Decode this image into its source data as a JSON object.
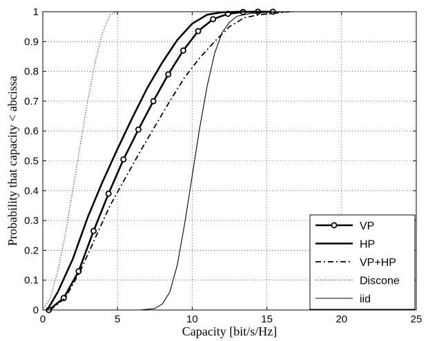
{
  "chart_data": {
    "type": "line",
    "title": "",
    "xlabel": "Capacity [bit/s/Hz]",
    "ylabel": "Probability that capacity < abcissa",
    "xlim": [
      0,
      25
    ],
    "ylim": [
      0,
      1
    ],
    "xticks": [
      0,
      5,
      10,
      15,
      20,
      25
    ],
    "yticks": [
      0,
      0.1,
      0.2,
      0.3,
      0.4,
      0.5,
      0.6,
      0.7,
      0.8,
      0.9,
      1
    ],
    "xtick_labels": [
      "0",
      "5",
      "10",
      "15",
      "20",
      "25"
    ],
    "ytick_labels": [
      "0",
      "0.1",
      "0.2",
      "0.3",
      "0.4",
      "0.5",
      "0.6",
      "0.7",
      "0.8",
      "0.9",
      "1"
    ],
    "grid": true,
    "legend_position": "bottom-right",
    "series": [
      {
        "name": "VP",
        "style": "solid-thick-circle",
        "x": [
          0.4,
          1.4,
          2.4,
          3.4,
          4.4,
          5.4,
          6.4,
          7.4,
          8.4,
          9.4,
          10.4,
          11.4,
          12.4,
          13.4,
          14.4,
          15.4
        ],
        "y": [
          0.0,
          0.04,
          0.13,
          0.265,
          0.39,
          0.505,
          0.605,
          0.7,
          0.79,
          0.87,
          0.935,
          0.975,
          0.993,
          0.999,
          1.0,
          1.0
        ]
      },
      {
        "name": "HP",
        "style": "solid-thick",
        "x": [
          0.3,
          1.0,
          2.0,
          3.0,
          4.0,
          5.0,
          6.0,
          7.0,
          8.0,
          9.0,
          10.0,
          11.0,
          12.0,
          13.0,
          14.0,
          15.0
        ],
        "y": [
          0.0,
          0.06,
          0.17,
          0.31,
          0.43,
          0.54,
          0.645,
          0.745,
          0.83,
          0.905,
          0.96,
          0.99,
          0.998,
          1.0,
          1.0,
          1.0
        ]
      },
      {
        "name": "VP+HP",
        "style": "dashdot",
        "x": [
          0.5,
          1.5,
          2.5,
          3.5,
          4.5,
          5.5,
          6.5,
          7.5,
          8.5,
          9.5,
          10.5,
          11.5,
          12.5,
          13.5,
          14.5,
          15.5,
          16.5
        ],
        "y": [
          0.0,
          0.04,
          0.13,
          0.24,
          0.35,
          0.44,
          0.53,
          0.615,
          0.7,
          0.78,
          0.845,
          0.9,
          0.95,
          0.98,
          0.99,
          0.995,
          1.0
        ]
      },
      {
        "name": "Discone",
        "style": "dotted",
        "x": [
          0.0,
          0.5,
          1.0,
          1.5,
          2.0,
          2.5,
          3.0,
          3.5,
          4.0,
          4.5,
          5.0
        ],
        "y": [
          0.0,
          0.04,
          0.13,
          0.25,
          0.4,
          0.55,
          0.7,
          0.83,
          0.93,
          0.99,
          1.0
        ]
      },
      {
        "name": "iid",
        "style": "solid-thin",
        "x": [
          6.5,
          7.5,
          8.0,
          8.5,
          9.0,
          9.5,
          10.0,
          10.5,
          11.0,
          11.5,
          12.0,
          12.5,
          13.0,
          14.0,
          15.0,
          16.0,
          17.0,
          18.0,
          19.0
        ],
        "y": [
          0.0,
          0.005,
          0.02,
          0.06,
          0.15,
          0.29,
          0.45,
          0.61,
          0.75,
          0.86,
          0.93,
          0.965,
          0.985,
          0.995,
          0.998,
          0.999,
          1.0,
          1.0,
          1.0
        ]
      }
    ]
  }
}
